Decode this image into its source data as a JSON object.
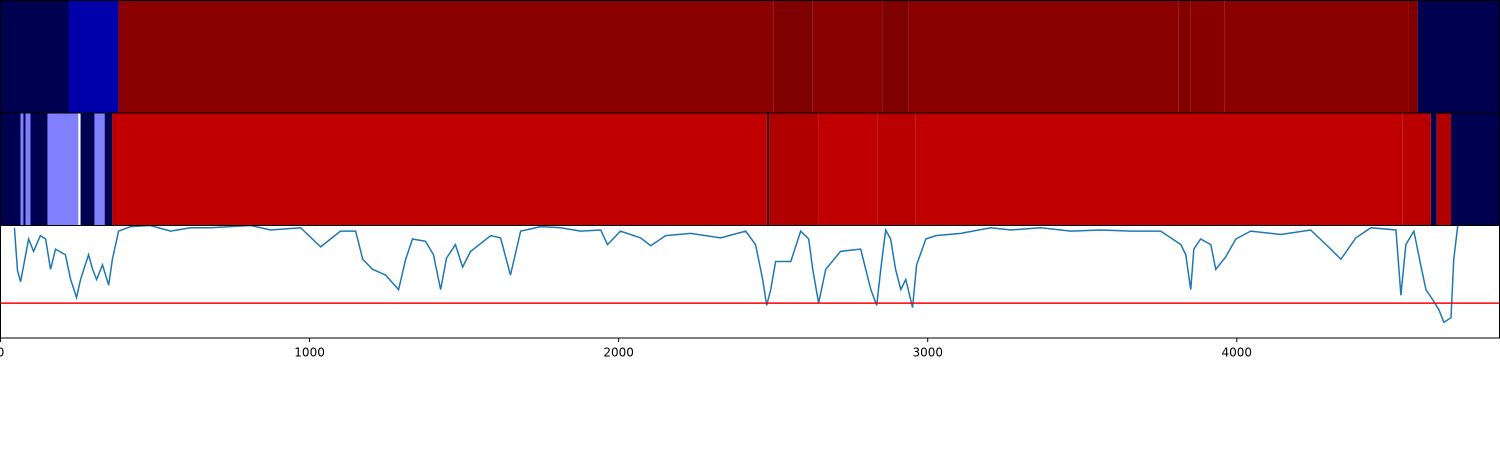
{
  "chart_data": [
    {
      "type": "bands",
      "xlim": [
        0,
        4850
      ],
      "bands": [
        {
          "start": 0,
          "end": 220,
          "color": "#000050"
        },
        {
          "start": 220,
          "end": 382,
          "color": "#0000aa"
        },
        {
          "start": 382,
          "end": 2502,
          "color": "#8b0000"
        },
        {
          "start": 2502,
          "end": 2628,
          "color": "#7f0000"
        },
        {
          "start": 2628,
          "end": 2854,
          "color": "#8b0000"
        },
        {
          "start": 2854,
          "end": 2939,
          "color": "#7f0000"
        },
        {
          "start": 2939,
          "end": 3812,
          "color": "#8b0000"
        },
        {
          "start": 3812,
          "end": 3851,
          "color": "#800000"
        },
        {
          "start": 3851,
          "end": 3961,
          "color": "#880000"
        },
        {
          "start": 3961,
          "end": 4557,
          "color": "#8b0000"
        },
        {
          "start": 4557,
          "end": 4586,
          "color": "#800000"
        },
        {
          "start": 4586,
          "end": 4850,
          "color": "#000050"
        }
      ]
    },
    {
      "type": "bands",
      "xlim": [
        0,
        4850
      ],
      "bands": [
        {
          "start": 0,
          "end": 65,
          "color": "#000050"
        },
        {
          "start": 65,
          "end": 74,
          "color": "#8080ff"
        },
        {
          "start": 74,
          "end": 81,
          "color": "#000050"
        },
        {
          "start": 81,
          "end": 97,
          "color": "#8080ff"
        },
        {
          "start": 97,
          "end": 152,
          "color": "#000050"
        },
        {
          "start": 152,
          "end": 252,
          "color": "#8080ff"
        },
        {
          "start": 252,
          "end": 259,
          "color": "#ffffff"
        },
        {
          "start": 259,
          "end": 304,
          "color": "#000050"
        },
        {
          "start": 304,
          "end": 337,
          "color": "#8080ff"
        },
        {
          "start": 337,
          "end": 362,
          "color": "#000050"
        },
        {
          "start": 362,
          "end": 2479,
          "color": "#c00000"
        },
        {
          "start": 2479,
          "end": 2489,
          "color": "#600000"
        },
        {
          "start": 2489,
          "end": 2647,
          "color": "#b00000"
        },
        {
          "start": 2647,
          "end": 2838,
          "color": "#c00000"
        },
        {
          "start": 2838,
          "end": 2961,
          "color": "#b80000"
        },
        {
          "start": 2961,
          "end": 4537,
          "color": "#c00000"
        },
        {
          "start": 4537,
          "end": 4628,
          "color": "#b80000"
        },
        {
          "start": 4628,
          "end": 4647,
          "color": "#000050"
        },
        {
          "start": 4647,
          "end": 4693,
          "color": "#b00000"
        },
        {
          "start": 4693,
          "end": 4850,
          "color": "#000050"
        }
      ]
    },
    {
      "type": "line",
      "xlim": [
        0,
        4850
      ],
      "ylim": [
        0,
        1
      ],
      "xticks": [
        0,
        1000,
        2000,
        3000,
        4000
      ],
      "color": "#1f77b4",
      "threshold": {
        "value": 0.31,
        "color": "#ff0000"
      },
      "x": [
        45,
        55,
        65,
        91,
        107,
        129,
        146,
        162,
        178,
        210,
        227,
        246,
        259,
        285,
        298,
        311,
        330,
        350,
        362,
        382,
        421,
        485,
        550,
        615,
        680,
        809,
        874,
        971,
        1036,
        1100,
        1149,
        1172,
        1204,
        1246,
        1288,
        1311,
        1333,
        1375,
        1401,
        1424,
        1443,
        1472,
        1495,
        1521,
        1586,
        1618,
        1650,
        1683,
        1748,
        1812,
        1877,
        1942,
        1964,
        2006,
        2071,
        2104,
        2152,
        2233,
        2330,
        2411,
        2443,
        2466,
        2479,
        2492,
        2508,
        2557,
        2589,
        2615,
        2628,
        2647,
        2670,
        2718,
        2783,
        2816,
        2835,
        2848,
        2864,
        2880,
        2896,
        2913,
        2929,
        2951,
        2964,
        2994,
        3026,
        3107,
        3204,
        3269,
        3366,
        3463,
        3560,
        3657,
        3754,
        3819,
        3835,
        3851,
        3861,
        3883,
        3916,
        3932,
        3964,
        3997,
        4045,
        4142,
        4239,
        4304,
        4337,
        4385,
        4434,
        4515,
        4531,
        4547,
        4573,
        4595,
        4612,
        4634,
        4654,
        4670,
        4693,
        4702,
        4715
      ],
      "values": [
        0.98,
        0.6,
        0.5,
        0.88,
        0.77,
        0.91,
        0.88,
        0.61,
        0.79,
        0.74,
        0.52,
        0.36,
        0.52,
        0.74,
        0.61,
        0.52,
        0.65,
        0.47,
        0.7,
        0.95,
        0.99,
        1,
        0.95,
        0.98,
        0.98,
        1,
        0.96,
        0.98,
        0.81,
        0.95,
        0.95,
        0.7,
        0.61,
        0.56,
        0.43,
        0.7,
        0.88,
        0.86,
        0.74,
        0.43,
        0.71,
        0.83,
        0.63,
        0.77,
        0.91,
        0.89,
        0.56,
        0.95,
        0.99,
        0.98,
        0.95,
        0.96,
        0.83,
        0.95,
        0.89,
        0.82,
        0.91,
        0.93,
        0.89,
        0.95,
        0.83,
        0.52,
        0.29,
        0.43,
        0.68,
        0.68,
        0.95,
        0.88,
        0.61,
        0.31,
        0.61,
        0.77,
        0.79,
        0.43,
        0.29,
        0.61,
        0.96,
        0.88,
        0.61,
        0.43,
        0.52,
        0.27,
        0.65,
        0.88,
        0.91,
        0.93,
        0.98,
        0.96,
        0.98,
        0.95,
        0.96,
        0.95,
        0.95,
        0.83,
        0.74,
        0.43,
        0.79,
        0.88,
        0.83,
        0.61,
        0.72,
        0.88,
        0.95,
        0.92,
        0.96,
        0.79,
        0.7,
        0.89,
        0.98,
        0.96,
        0.38,
        0.83,
        0.95,
        0.65,
        0.43,
        0.34,
        0.25,
        0.14,
        0.18,
        0.7,
        1
      ]
    }
  ]
}
